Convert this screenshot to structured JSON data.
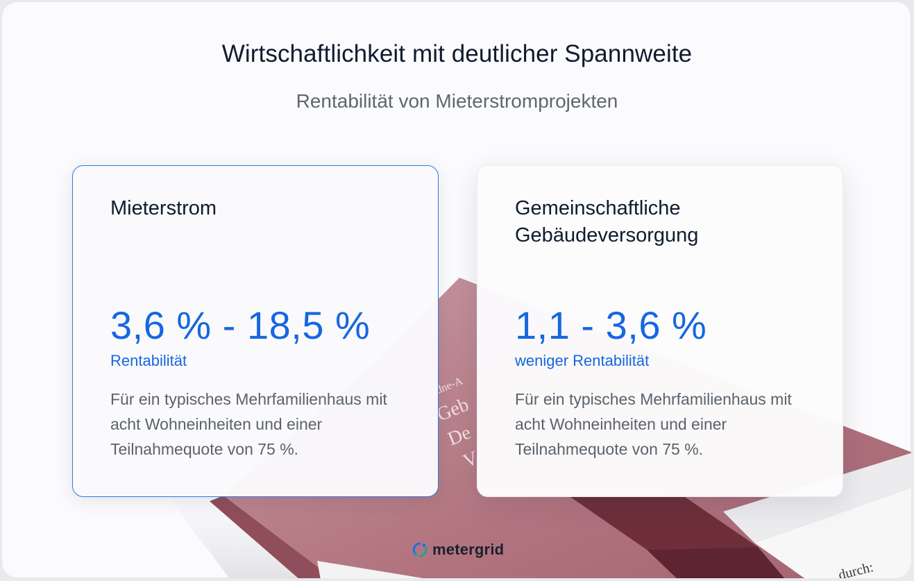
{
  "header": {
    "title": "Wirtschaftlichkeit mit deutlicher Spannweite",
    "subtitle": "Rentabilität von Mieterstromprojekten"
  },
  "cards": [
    {
      "title": "Mieterstrom",
      "value": "3,6 % - 18,5 %",
      "metric": "Rentabilität",
      "description": "Für ein typisches Mehrfamilienhaus mit acht Wohneinheiten und einer Teilnahmequote von 75 %."
    },
    {
      "title": "Gemeinschaftliche Gebäudeversorgung",
      "value": "1,1 - 3,6 %",
      "metric": "weniger Rentabilität",
      "description": "Für ein typisches Mehrfamilienhaus mit acht Wohneinheiten und einer Teilnahmequote von 75 %."
    }
  ],
  "book": {
    "spine_text": "adne-A",
    "cover_text": [
      "Geb",
      "De",
      "V"
    ],
    "corner_text": "durch:"
  },
  "brand": {
    "name": "metergrid",
    "icon": "metergrid-logo-icon"
  },
  "colors": {
    "accent": "#1667e0",
    "card_border": "#2f7ae0",
    "book_cover": "#b27580",
    "book_ribbon": "#6e2f3a",
    "text_dark": "#0f1b2d",
    "text_muted": "#5b626c"
  }
}
